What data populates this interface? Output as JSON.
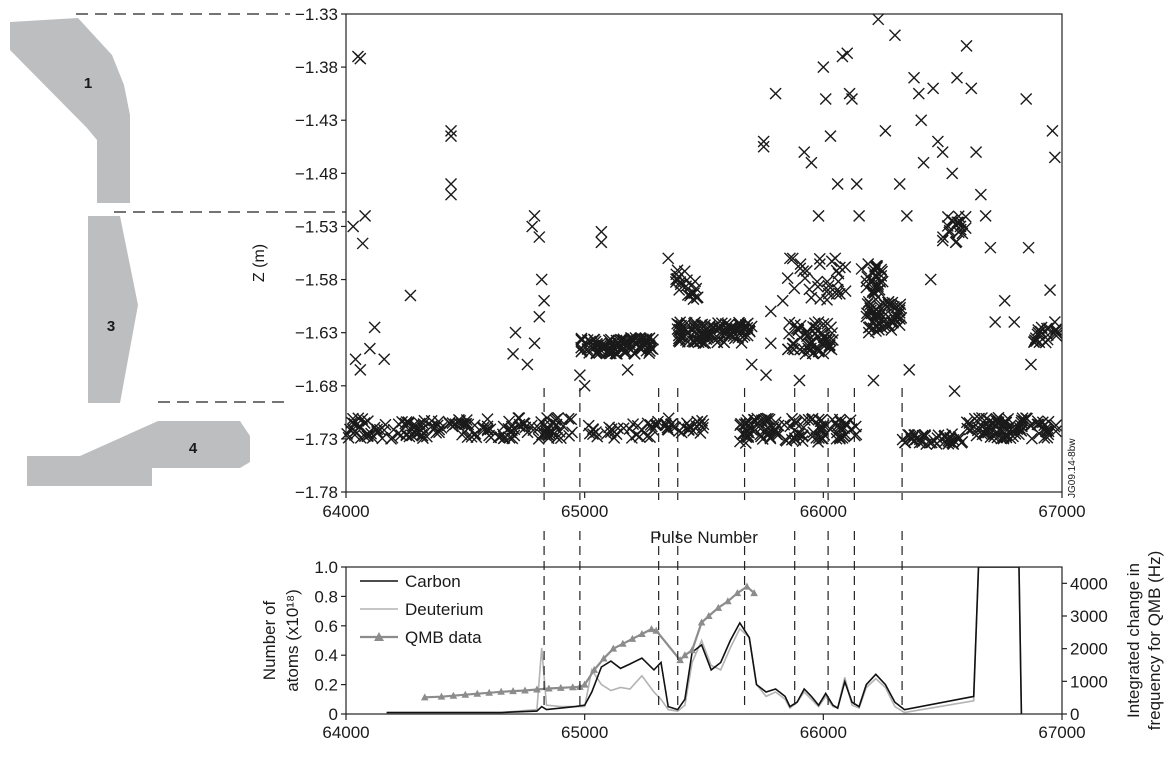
{
  "tile_labels": [
    "1",
    "3",
    "4"
  ],
  "watermark": "JG09.14-8bw",
  "colors": {
    "tile_fill": "#bcbec0",
    "marker": "#1a1a1a",
    "carbon": "#111111",
    "deuterium": "#b3b3b3",
    "qmb": "#8c8c8c"
  },
  "chart_data": [
    {
      "type": "scatter",
      "xlabel": "Pulse Number",
      "ylabel": "Z (m)",
      "xlim": [
        64000,
        67000
      ],
      "ylim": [
        -1.78,
        -1.33
      ],
      "x_ticks": [
        64000,
        65000,
        66000,
        67000
      ],
      "y_ticks": [
        -1.33,
        -1.38,
        -1.43,
        -1.48,
        -1.53,
        -1.58,
        -1.63,
        -1.68,
        -1.73,
        -1.78
      ],
      "x_tick_labels": [
        "64000",
        "65000",
        "66000",
        "67000"
      ],
      "y_tick_labels": [
        "−1.33",
        "−1.38",
        "−1.43",
        "−1.48",
        "−1.53",
        "−1.58",
        "−1.63",
        "−1.68",
        "−1.73",
        "−1.78"
      ],
      "marker": "x",
      "grid": false,
      "marker_bands": [
        {
          "x": [
            64000,
            64950
          ],
          "z": [
            -1.73,
            -1.71
          ],
          "n": 160
        },
        {
          "x": [
            65000,
            65300
          ],
          "z": [
            -1.73,
            -1.715
          ],
          "n": 30
        },
        {
          "x": [
            65300,
            65500
          ],
          "z": [
            -1.725,
            -1.71
          ],
          "n": 30
        },
        {
          "x": [
            65650,
            66010
          ],
          "z": [
            -1.735,
            -1.71
          ],
          "n": 90
        },
        {
          "x": [
            66030,
            66140
          ],
          "z": [
            -1.73,
            -1.71
          ],
          "n": 25
        },
        {
          "x": [
            66330,
            66590
          ],
          "z": [
            -1.735,
            -1.725
          ],
          "n": 45
        },
        {
          "x": [
            66600,
            66980
          ],
          "z": [
            -1.73,
            -1.71
          ],
          "n": 90
        },
        {
          "x": [
            64980,
            65290
          ],
          "z": [
            -1.65,
            -1.635
          ],
          "n": 110
        },
        {
          "x": [
            65380,
            65700
          ],
          "z": [
            -1.64,
            -1.62
          ],
          "n": 110
        },
        {
          "x": [
            65850,
            66040
          ],
          "z": [
            -1.65,
            -1.62
          ],
          "n": 60
        },
        {
          "x": [
            66180,
            66330
          ],
          "z": [
            -1.63,
            -1.6
          ],
          "n": 60
        },
        {
          "x": [
            66880,
            66980
          ],
          "z": [
            -1.64,
            -1.625
          ],
          "n": 20
        },
        {
          "x": [
            66180,
            66250
          ],
          "z": [
            -1.6,
            -1.56
          ],
          "n": 30
        },
        {
          "x": [
            65850,
            66100
          ],
          "z": [
            -1.6,
            -1.56
          ],
          "n": 30
        },
        {
          "x": [
            66490,
            66600
          ],
          "z": [
            -1.55,
            -1.52
          ],
          "n": 20
        },
        {
          "x": [
            65380,
            65420
          ],
          "z": [
            -1.59,
            -1.57
          ],
          "n": 10
        },
        {
          "x": [
            65420,
            65480
          ],
          "z": [
            -1.6,
            -1.58
          ],
          "n": 12
        }
      ],
      "points": [
        [
          64050,
          -1.37
        ],
        [
          64060,
          -1.372
        ],
        [
          64070,
          -1.546
        ],
        [
          64030,
          -1.53
        ],
        [
          64080,
          -1.52
        ],
        [
          64060,
          -1.665
        ],
        [
          64040,
          -1.655
        ],
        [
          64100,
          -1.645
        ],
        [
          64120,
          -1.625
        ],
        [
          64160,
          -1.655
        ],
        [
          64270,
          -1.595
        ],
        [
          64440,
          -1.44
        ],
        [
          64440,
          -1.445
        ],
        [
          64440,
          -1.49
        ],
        [
          64440,
          -1.5
        ],
        [
          64700,
          -1.65
        ],
        [
          64710,
          -1.63
        ],
        [
          64760,
          -1.66
        ],
        [
          64790,
          -1.64
        ],
        [
          64810,
          -1.615
        ],
        [
          64820,
          -1.58
        ],
        [
          64830,
          -1.6
        ],
        [
          64790,
          -1.52
        ],
        [
          64810,
          -1.54
        ],
        [
          64780,
          -1.53
        ],
        [
          65070,
          -1.535
        ],
        [
          65070,
          -1.545
        ],
        [
          64980,
          -1.67
        ],
        [
          65000,
          -1.68
        ],
        [
          65180,
          -1.665
        ],
        [
          65350,
          -1.56
        ],
        [
          65700,
          -1.66
        ],
        [
          65760,
          -1.67
        ],
        [
          65780,
          -1.64
        ],
        [
          65800,
          -1.405
        ],
        [
          65830,
          -1.6
        ],
        [
          65860,
          -1.56
        ],
        [
          65750,
          -1.45
        ],
        [
          65750,
          -1.455
        ],
        [
          65900,
          -1.675
        ],
        [
          65920,
          -1.46
        ],
        [
          65950,
          -1.47
        ],
        [
          65980,
          -1.52
        ],
        [
          66000,
          -1.38
        ],
        [
          66010,
          -1.41
        ],
        [
          66030,
          -1.445
        ],
        [
          66050,
          -1.56
        ],
        [
          66060,
          -1.49
        ],
        [
          66080,
          -1.37
        ],
        [
          66100,
          -1.367
        ],
        [
          66110,
          -1.405
        ],
        [
          66120,
          -1.41
        ],
        [
          66140,
          -1.49
        ],
        [
          66150,
          -1.52
        ],
        [
          66160,
          -1.57
        ],
        [
          66230,
          -1.335
        ],
        [
          66260,
          -1.44
        ],
        [
          66300,
          -1.35
        ],
        [
          66320,
          -1.49
        ],
        [
          66350,
          -1.52
        ],
        [
          66380,
          -1.39
        ],
        [
          66400,
          -1.405
        ],
        [
          66410,
          -1.43
        ],
        [
          66420,
          -1.47
        ],
        [
          66450,
          -1.58
        ],
        [
          66460,
          -1.4
        ],
        [
          66480,
          -1.45
        ],
        [
          66500,
          -1.46
        ],
        [
          66540,
          -1.48
        ],
        [
          66560,
          -1.39
        ],
        [
          66600,
          -1.36
        ],
        [
          66620,
          -1.4
        ],
        [
          66640,
          -1.46
        ],
        [
          66660,
          -1.5
        ],
        [
          66680,
          -1.52
        ],
        [
          66700,
          -1.55
        ],
        [
          66720,
          -1.62
        ],
        [
          66760,
          -1.6
        ],
        [
          66800,
          -1.62
        ],
        [
          66850,
          -1.41
        ],
        [
          66860,
          -1.55
        ],
        [
          66870,
          -1.66
        ],
        [
          66960,
          -1.44
        ],
        [
          66970,
          -1.465
        ],
        [
          66950,
          -1.59
        ],
        [
          66970,
          -1.62
        ],
        [
          66550,
          -1.685
        ],
        [
          66360,
          -1.665
        ],
        [
          66210,
          -1.675
        ],
        [
          65780,
          -1.61
        ]
      ]
    },
    {
      "type": "line",
      "xlabel": "",
      "ylabel": "Number of atoms (x10¹⁸)",
      "ylabel_lines": [
        "Number of",
        "atoms (x10¹⁸)"
      ],
      "y2label": "Integrated change in frequency for QMB (Hz)",
      "y2label_lines": [
        "Integrated change in",
        "frequency for QMB (Hz)"
      ],
      "xlim": [
        64000,
        67000
      ],
      "ylim": [
        0,
        1.0
      ],
      "y2lim": [
        0,
        4500
      ],
      "x_ticks": [
        64000,
        65000,
        66000,
        67000
      ],
      "x_tick_labels": [
        "64000",
        "65000",
        "66000",
        "67000"
      ],
      "y_ticks": [
        0,
        0.2,
        0.4,
        0.6,
        0.8,
        1.0
      ],
      "y_tick_labels": [
        "0",
        "0.2",
        "0.4",
        "0.6",
        "0.8",
        "1.0"
      ],
      "y2_ticks": [
        0,
        1000,
        2000,
        3000,
        4000
      ],
      "y2_tick_labels": [
        "0",
        "1000",
        "2000",
        "3000",
        "4000"
      ],
      "legend": "top-left",
      "grid": false,
      "series": [
        {
          "name": "Carbon",
          "axis": "left",
          "x": [
            64170,
            64400,
            64650,
            64800,
            64820,
            64840,
            64900,
            64960,
            65000,
            65030,
            65070,
            65110,
            65150,
            65190,
            65240,
            65290,
            65320,
            65350,
            65390,
            65420,
            65450,
            65490,
            65530,
            65570,
            65610,
            65650,
            65690,
            65720,
            65760,
            65800,
            65840,
            65860,
            65890,
            65920,
            65950,
            65980,
            66010,
            66040,
            66060,
            66090,
            66120,
            66150,
            66180,
            66220,
            66260,
            66300,
            66340,
            66630,
            66650,
            66680,
            66820,
            66830
          ],
          "y": [
            0.01,
            0.01,
            0.01,
            0.02,
            0.05,
            0.03,
            0.04,
            0.05,
            0.06,
            0.15,
            0.32,
            0.36,
            0.31,
            0.34,
            0.38,
            0.3,
            0.35,
            0.05,
            0.03,
            0.1,
            0.42,
            0.47,
            0.3,
            0.35,
            0.5,
            0.62,
            0.52,
            0.2,
            0.15,
            0.17,
            0.12,
            0.05,
            0.08,
            0.17,
            0.12,
            0.06,
            0.14,
            0.06,
            0.04,
            0.22,
            0.08,
            0.05,
            0.2,
            0.27,
            0.2,
            0.08,
            0.03,
            0.12,
            1.0,
            1.0,
            1.0,
            0.0
          ]
        },
        {
          "name": "Deuterium",
          "axis": "left",
          "x": [
            64170,
            64400,
            64650,
            64800,
            64820,
            64840,
            64900,
            64960,
            65000,
            65030,
            65070,
            65110,
            65150,
            65190,
            65240,
            65290,
            65320,
            65350,
            65390,
            65420,
            65450,
            65490,
            65530,
            65570,
            65610,
            65650,
            65690,
            65720,
            65760,
            65800,
            65840,
            65860,
            65890,
            65920,
            65950,
            65980,
            66010,
            66040,
            66060,
            66090,
            66120,
            66150,
            66180,
            66220,
            66260,
            66300,
            66340,
            66630,
            66650,
            66680,
            66820,
            66830
          ],
          "y": [
            0.01,
            0.01,
            0.01,
            0.03,
            0.45,
            0.06,
            0.05,
            0.05,
            0.05,
            0.3,
            0.2,
            0.16,
            0.18,
            0.17,
            0.26,
            0.15,
            0.1,
            0.03,
            0.02,
            0.06,
            0.35,
            0.5,
            0.33,
            0.3,
            0.45,
            0.58,
            0.52,
            0.2,
            0.12,
            0.15,
            0.1,
            0.04,
            0.08,
            0.15,
            0.1,
            0.05,
            0.12,
            0.05,
            0.04,
            0.25,
            0.06,
            0.04,
            0.18,
            0.24,
            0.18,
            0.05,
            0.01,
            0.09,
            1.0,
            1.0,
            1.0,
            0.0
          ]
        },
        {
          "name": "QMB data",
          "axis": "right",
          "marker": "triangle",
          "x": [
            64330,
            64400,
            64450,
            64500,
            64550,
            64600,
            64650,
            64700,
            64750,
            64800,
            64850,
            64900,
            64950,
            64980,
            65000,
            65040,
            65080,
            65120,
            65160,
            65200,
            65240,
            65280,
            65300,
            65400,
            65420,
            65450,
            65490,
            65520,
            65560,
            65600,
            65640,
            65680,
            65710
          ],
          "y": [
            510,
            530,
            560,
            590,
            620,
            650,
            680,
            700,
            720,
            750,
            780,
            800,
            820,
            830,
            900,
            1350,
            1700,
            2000,
            2150,
            2300,
            2450,
            2600,
            2550,
            1650,
            1800,
            1950,
            2800,
            3000,
            3250,
            3450,
            3700,
            3900,
            3700
          ]
        }
      ]
    }
  ]
}
